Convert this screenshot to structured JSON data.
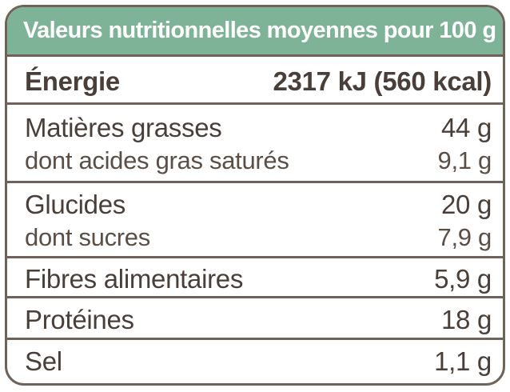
{
  "header": {
    "title": "Valeurs nutritionnelles moyennes pour 100 g"
  },
  "rows": [
    {
      "label": "Énergie",
      "value": "2317 kJ (560 kcal)"
    },
    {
      "label": "Matières grasses",
      "value": "44 g"
    },
    {
      "label": "dont acides gras saturés",
      "value": "9,1 g"
    },
    {
      "label": "Glucides",
      "value": "20 g"
    },
    {
      "label": "dont sucres",
      "value": "7,9 g"
    },
    {
      "label": "Fibres alimentaires",
      "value": "5,9 g"
    },
    {
      "label": "Protéines",
      "value": "18 g"
    },
    {
      "label": "Sel",
      "value": "1,1 g"
    }
  ],
  "colors": {
    "header_background": "#7fb397",
    "border": "#6f6359",
    "text": "#4a3f38",
    "header_text": "#ffffff"
  }
}
